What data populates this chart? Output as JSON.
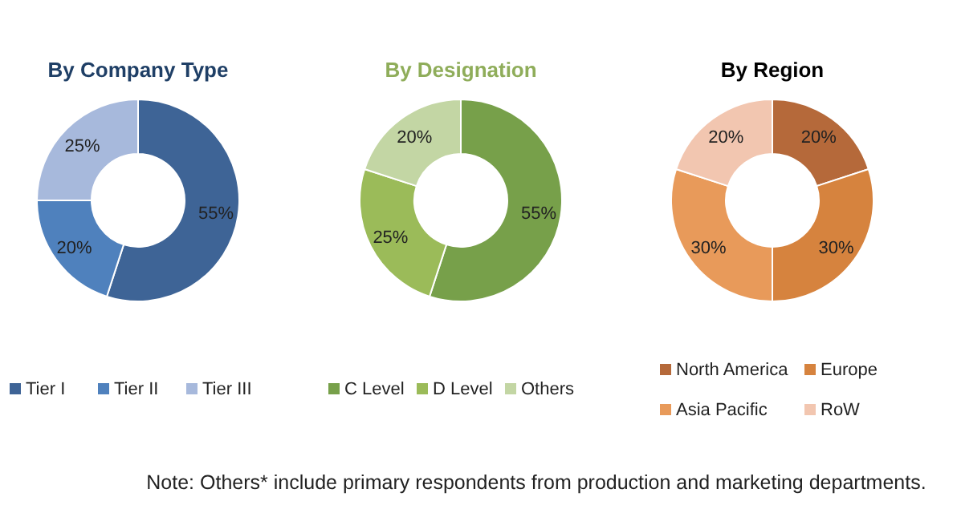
{
  "chart_data": [
    {
      "type": "donut",
      "title": "By Company Type",
      "categories": [
        "Tier I",
        "Tier II",
        "Tier III"
      ],
      "values": [
        55,
        20,
        25
      ],
      "colors": [
        "#3e6496",
        "#4f81bd",
        "#a7b9dc"
      ],
      "value_labels": [
        "55%",
        "20%",
        "25%"
      ],
      "legend": "bottom"
    },
    {
      "type": "donut",
      "title": "By Designation",
      "categories": [
        "C Level",
        "D Level",
        "Others"
      ],
      "values": [
        55,
        25,
        20
      ],
      "colors": [
        "#77a04a",
        "#9bbb59",
        "#c3d6a4"
      ],
      "value_labels": [
        "55%",
        "25%",
        "20%"
      ],
      "legend": "bottom"
    },
    {
      "type": "donut",
      "title": "By Region",
      "categories": [
        "North America",
        "Europe",
        "Asia Pacific",
        "RoW"
      ],
      "values": [
        20,
        30,
        30,
        20
      ],
      "colors": [
        "#b5693a",
        "#d6833e",
        "#e89a5a",
        "#f2c6b0"
      ],
      "value_labels": [
        "20%",
        "30%",
        "30%",
        "20%"
      ],
      "legend": "bottom",
      "annotations": [
        "Note: Others* include primary respondents from production and marketing departments."
      ]
    }
  ]
}
